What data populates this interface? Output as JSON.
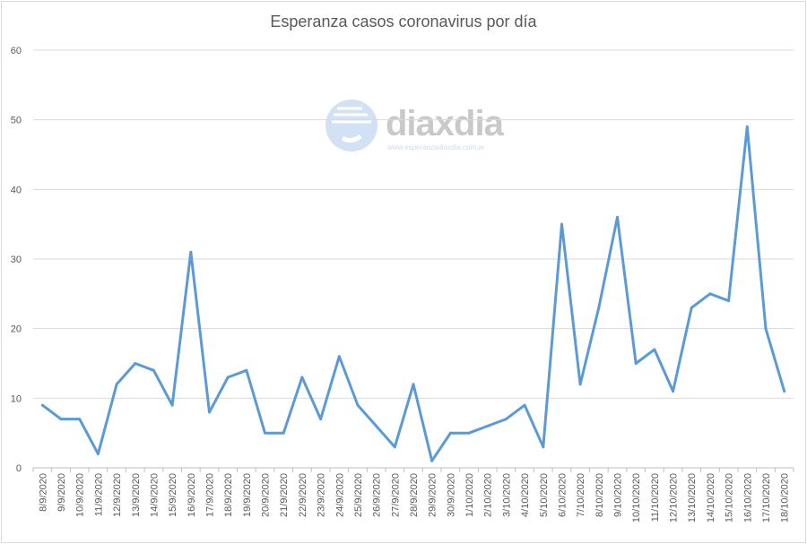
{
  "chart_data": {
    "type": "line",
    "title": "Esperanza casos coronavirus por día",
    "xlabel": "",
    "ylabel": "",
    "ylim": [
      0,
      60
    ],
    "yticks": [
      "0",
      "10",
      "20",
      "30",
      "40",
      "50",
      "60"
    ],
    "grid": true,
    "legend": "none",
    "series_color": "#5b9bd5",
    "categories": [
      "8/9/2020",
      "9/9/2020",
      "10/9/2020",
      "11/9/2020",
      "12/9/2020",
      "13/9/2020",
      "14/9/2020",
      "15/9/2020",
      "16/9/2020",
      "17/9/2020",
      "18/9/2020",
      "19/9/2020",
      "20/9/2020",
      "21/9/2020",
      "22/9/2020",
      "23/9/2020",
      "24/9/2020",
      "25/9/2020",
      "26/9/2020",
      "27/9/2020",
      "28/9/2020",
      "29/9/2020",
      "30/9/2020",
      "1/10/2020",
      "2/10/2020",
      "3/10/2020",
      "4/10/2020",
      "5/10/2020",
      "6/10/2020",
      "7/10/2020",
      "8/10/2020",
      "9/10/2020",
      "10/10/2020",
      "11/10/2020",
      "12/10/2020",
      "13/10/2020",
      "14/10/2020",
      "15/10/2020",
      "16/10/2020",
      "17/10/2020",
      "18/10/2020"
    ],
    "values": [
      9,
      7,
      7,
      2,
      12,
      15,
      14,
      9,
      31,
      8,
      13,
      14,
      5,
      5,
      13,
      7,
      16,
      9,
      6,
      3,
      12,
      1,
      5,
      5,
      6,
      7,
      9,
      3,
      35,
      12,
      23,
      36,
      15,
      17,
      11,
      23,
      25,
      24,
      49,
      20,
      11
    ]
  },
  "watermark": {
    "brand": "diaxdia",
    "url": "www.esperanzadiaxdia.com.ar"
  }
}
